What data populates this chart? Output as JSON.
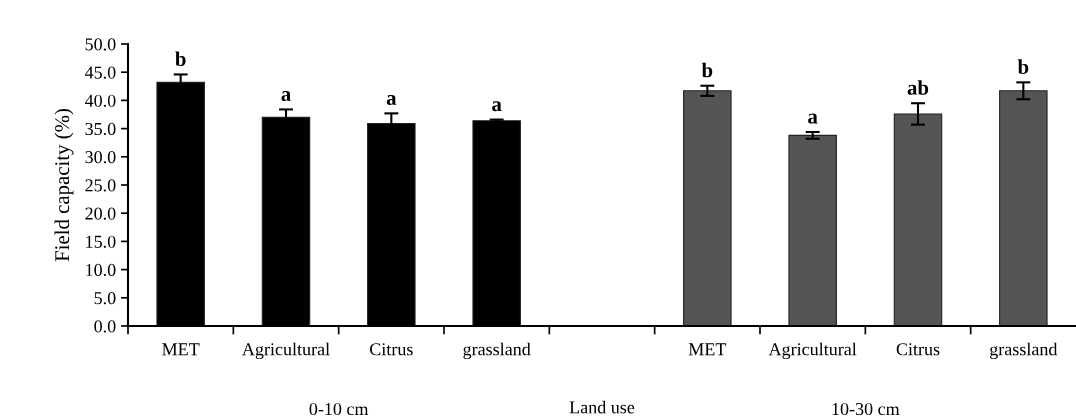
{
  "chart_data": {
    "type": "bar",
    "categories": [
      "MET",
      "Agricultural",
      "Citrus",
      "grassland",
      null,
      "MET",
      "Agricultural",
      "Citrus",
      "grassland"
    ],
    "values": [
      43.2,
      37.0,
      35.9,
      36.4,
      null,
      41.7,
      33.8,
      37.6,
      41.7
    ],
    "errors": [
      1.4,
      1.4,
      1.8,
      0.2,
      null,
      0.9,
      0.6,
      1.9,
      1.5
    ],
    "colors": [
      "#000000",
      "#000000",
      "#000000",
      "#000000",
      "#000000",
      "#555555",
      "#555555",
      "#555555",
      "#555555"
    ],
    "value_labels": [
      "b",
      "a",
      "a",
      "a",
      null,
      "b",
      "a",
      "ab",
      "b"
    ],
    "xlabel": "Land use",
    "ylabel": "Field capacity (%)",
    "ylim": [
      0,
      50
    ],
    "yticks": [
      {
        "value": 0,
        "label": "0.0"
      },
      {
        "value": 5,
        "label": "5.0"
      },
      {
        "value": 10,
        "label": "10.0"
      },
      {
        "value": 15,
        "label": "15.0"
      },
      {
        "value": 20,
        "label": "20.0"
      },
      {
        "value": 25,
        "label": "25.0"
      },
      {
        "value": 30,
        "label": "30.0"
      },
      {
        "value": 35,
        "label": "35.0"
      },
      {
        "value": 40,
        "label": "40.0"
      },
      {
        "value": 45,
        "label": "45.0"
      },
      {
        "value": 50,
        "label": "50.0"
      }
    ],
    "annotations": [
      "0-10 cm",
      "10-30 cm"
    ],
    "grid": false,
    "legend": false
  }
}
